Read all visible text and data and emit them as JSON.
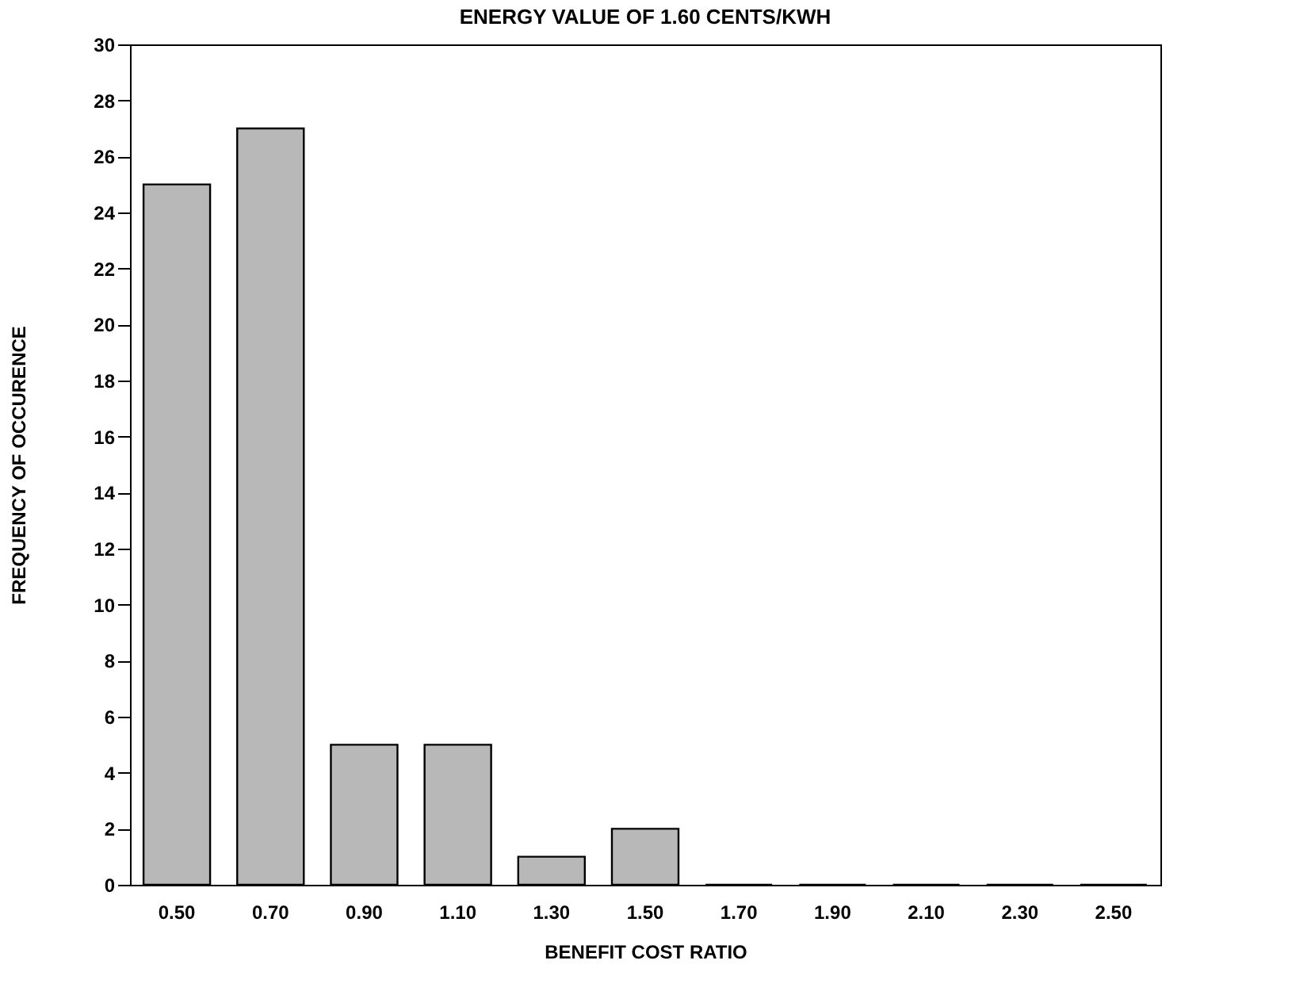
{
  "chart_data": {
    "type": "bar",
    "title": "ENERGY VALUE OF 1.60 CENTS/KWH",
    "xlabel": "BENEFIT COST RATIO",
    "ylabel": "FREQUENCY OF OCCURENCE",
    "categories": [
      "0.50",
      "0.70",
      "0.90",
      "1.10",
      "1.30",
      "1.50",
      "1.70",
      "1.90",
      "2.10",
      "2.30",
      "2.50"
    ],
    "values": [
      25,
      27,
      5,
      5,
      1,
      2,
      0,
      0,
      0,
      0,
      0
    ],
    "color": "#b8b8b8",
    "ylim": [
      0,
      30
    ],
    "yticks": [
      0,
      2,
      4,
      6,
      8,
      10,
      12,
      14,
      16,
      18,
      20,
      22,
      24,
      26,
      28,
      30
    ],
    "grid": false
  }
}
